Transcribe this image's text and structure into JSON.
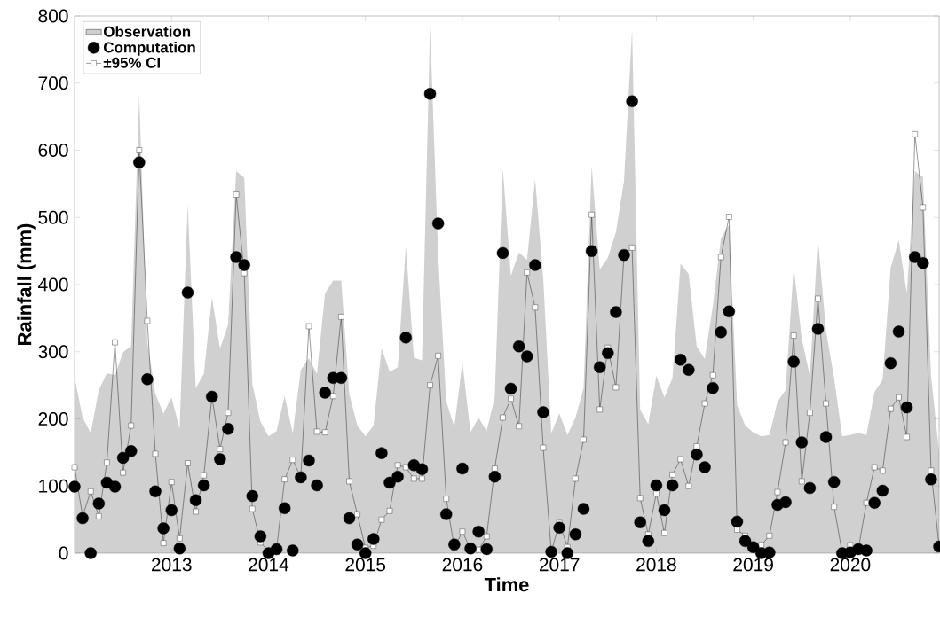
{
  "chart_data": {
    "type": "line",
    "xlabel": "Time",
    "ylabel": "Rainfall (mm)",
    "x": [
      "2012-01",
      "2012-02",
      "2012-03",
      "2012-04",
      "2012-05",
      "2012-06",
      "2012-07",
      "2012-08",
      "2012-09",
      "2012-10",
      "2012-11",
      "2012-12",
      "2013-01",
      "2013-02",
      "2013-03",
      "2013-04",
      "2013-05",
      "2013-06",
      "2013-07",
      "2013-08",
      "2013-09",
      "2013-10",
      "2013-11",
      "2013-12",
      "2014-01",
      "2014-02",
      "2014-03",
      "2014-04",
      "2014-05",
      "2014-06",
      "2014-07",
      "2014-08",
      "2014-09",
      "2014-10",
      "2014-11",
      "2014-12",
      "2015-01",
      "2015-02",
      "2015-03",
      "2015-04",
      "2015-05",
      "2015-06",
      "2015-07",
      "2015-08",
      "2015-09",
      "2015-10",
      "2015-11",
      "2015-12",
      "2016-01",
      "2016-02",
      "2016-03",
      "2016-04",
      "2016-05",
      "2016-06",
      "2016-07",
      "2016-08",
      "2016-09",
      "2016-10",
      "2016-11",
      "2016-12",
      "2017-01",
      "2017-02",
      "2017-03",
      "2017-04",
      "2017-05",
      "2017-06",
      "2017-07",
      "2017-08",
      "2017-09",
      "2017-10",
      "2017-11",
      "2017-12",
      "2018-01",
      "2018-02",
      "2018-03",
      "2018-04",
      "2018-05",
      "2018-06",
      "2018-07",
      "2018-08",
      "2018-09",
      "2018-10",
      "2018-11",
      "2018-12",
      "2019-01",
      "2019-02",
      "2019-03",
      "2019-04",
      "2019-05",
      "2019-06",
      "2019-07",
      "2019-08",
      "2019-09",
      "2019-10",
      "2019-11",
      "2019-12",
      "2020-01",
      "2020-02",
      "2020-03",
      "2020-04",
      "2020-05",
      "2020-06",
      "2020-07",
      "2020-08",
      "2020-09",
      "2020-10",
      "2020-11",
      "2020-12"
    ],
    "series": [
      {
        "name": "Observation",
        "type": "area",
        "color": "#d0d0d0",
        "values": [
          262,
          202,
          179,
          243,
          268,
          265,
          299,
          309,
          683,
          315,
          237,
          208,
          232,
          185,
          520,
          246,
          267,
          381,
          305,
          340,
          569,
          559,
          252,
          196,
          174,
          182,
          234,
          179,
          273,
          290,
          267,
          387,
          406,
          406,
          237,
          190,
          174,
          190,
          305,
          270,
          277,
          457,
          291,
          287,
          785,
          443,
          226,
          188,
          284,
          180,
          202,
          182,
          232,
          573,
          413,
          448,
          437,
          557,
          410,
          179,
          208,
          176,
          202,
          246,
          577,
          422,
          440,
          478,
          554,
          780,
          214,
          192,
          264,
          232,
          261,
          431,
          416,
          308,
          289,
          369,
          469,
          489,
          220,
          190,
          180,
          174,
          176,
          226,
          243,
          426,
          319,
          264,
          469,
          331,
          261,
          174,
          176,
          179,
          176,
          240,
          258,
          425,
          466,
          387,
          569,
          560,
          264,
          150
        ]
      },
      {
        "name": "Computation",
        "type": "scatter",
        "color": "#000000",
        "marker": "circle",
        "values": [
          99,
          52,
          0,
          74,
          105,
          99,
          142,
          152,
          582,
          259,
          92,
          37,
          64,
          7,
          388,
          79,
          101,
          233,
          140,
          185,
          441,
          429,
          85,
          25,
          0,
          6,
          67,
          4,
          113,
          138,
          101,
          239,
          261,
          261,
          52,
          13,
          0,
          21,
          149,
          105,
          114,
          321,
          131,
          125,
          684,
          491,
          58,
          13,
          126,
          7,
          32,
          6,
          114,
          447,
          245,
          308,
          293,
          429,
          210,
          2,
          38,
          0,
          28,
          66,
          450,
          277,
          298,
          359,
          444,
          673,
          46,
          18,
          101,
          64,
          101,
          288,
          273,
          147,
          128,
          246,
          329,
          360,
          47,
          18,
          9,
          0,
          1,
          72,
          76,
          285,
          165,
          97,
          334,
          173,
          106,
          0,
          1,
          6,
          4,
          75,
          93,
          283,
          330,
          217,
          441,
          432,
          110,
          10
        ]
      },
      {
        "name": "±95% CI",
        "color": "#000000",
        "marker": "square",
        "values": [
          128,
          55,
          92,
          55,
          135,
          314,
          120,
          190,
          600,
          346,
          148,
          15,
          106,
          22,
          134,
          62,
          116,
          233,
          155,
          209,
          534,
          417,
          66,
          16,
          3,
          6,
          110,
          139,
          113,
          338,
          181,
          180,
          234,
          352,
          107,
          58,
          8,
          11,
          50,
          63,
          131,
          128,
          111,
          111,
          250,
          294,
          81,
          8,
          32,
          6,
          5,
          25,
          126,
          202,
          230,
          189,
          418,
          366,
          157,
          2,
          45,
          9,
          111,
          169,
          504,
          214,
          306,
          247,
          444,
          455,
          82,
          28,
          89,
          30,
          117,
          140,
          100,
          159,
          223,
          265,
          441,
          501,
          35,
          26,
          10,
          12,
          26,
          91,
          165,
          324,
          107,
          209,
          379,
          223,
          69,
          1,
          12,
          6,
          75,
          128,
          123,
          215,
          232,
          173,
          624,
          515,
          123,
          10
        ]
      }
    ],
    "xlim": [
      "2012-01",
      "2020-12"
    ],
    "xticks": [
      {
        "value": "2013",
        "label": "2013"
      },
      {
        "value": "2014",
        "label": "2014"
      },
      {
        "value": "2015",
        "label": "2015"
      },
      {
        "value": "2016",
        "label": "2016"
      },
      {
        "value": "2017",
        "label": "2017"
      },
      {
        "value": "2018",
        "label": "2018"
      },
      {
        "value": "2019",
        "label": "2019"
      },
      {
        "value": "2020",
        "label": "2020"
      }
    ],
    "ylim": [
      0,
      800
    ],
    "yticks": [
      0,
      100,
      200,
      300,
      400,
      500,
      600,
      700,
      800
    ],
    "legend": "top left"
  }
}
